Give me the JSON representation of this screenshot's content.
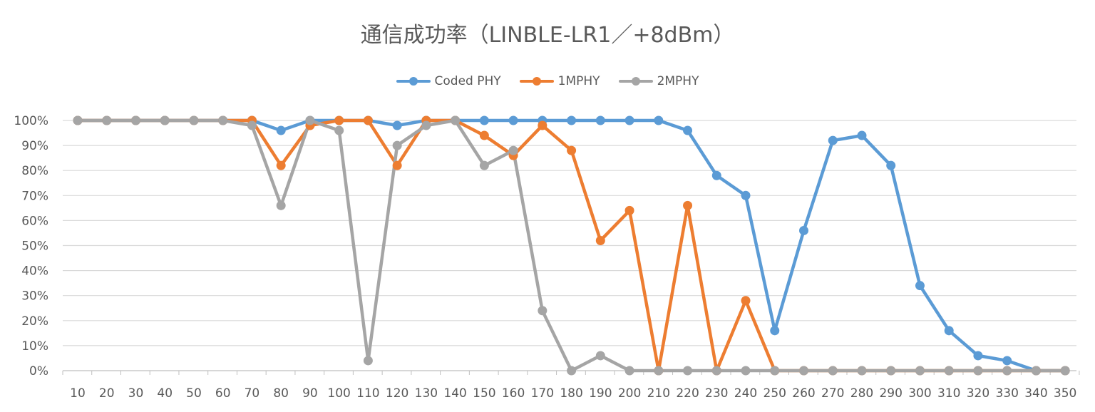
{
  "chart_data": {
    "type": "line",
    "title": "通信成功率（LINBLE-LR1／+8dBm）",
    "xlabel": "",
    "ylabel": "",
    "categories": [
      "10",
      "20",
      "30",
      "40",
      "50",
      "60",
      "70",
      "80",
      "90",
      "100",
      "110",
      "120",
      "130",
      "140",
      "150",
      "160",
      "170",
      "180",
      "190",
      "200",
      "210",
      "220",
      "230",
      "240",
      "250",
      "260",
      "270",
      "280",
      "290",
      "300",
      "310",
      "320",
      "330",
      "340",
      "350"
    ],
    "yticks": [
      "0%",
      "10%",
      "20%",
      "30%",
      "40%",
      "50%",
      "60%",
      "70%",
      "80%",
      "90%",
      "100%"
    ],
    "ylim": [
      0,
      100
    ],
    "grid": true,
    "legend_position": "top",
    "series": [
      {
        "name": "Coded PHY",
        "color": "#5b9bd5",
        "values": [
          100,
          100,
          100,
          100,
          100,
          100,
          100,
          96,
          100,
          100,
          100,
          98,
          100,
          100,
          100,
          100,
          100,
          100,
          100,
          100,
          100,
          96,
          78,
          70,
          16,
          56,
          92,
          94,
          82,
          34,
          16,
          6,
          4,
          0,
          0
        ]
      },
      {
        "name": "1MPHY",
        "color": "#ed7d31",
        "values": [
          100,
          100,
          100,
          100,
          100,
          100,
          100,
          82,
          98,
          100,
          100,
          82,
          100,
          100,
          94,
          86,
          98,
          88,
          52,
          64,
          0,
          66,
          0,
          28,
          0,
          0,
          0,
          0,
          0,
          0,
          0,
          0,
          0,
          0,
          0
        ]
      },
      {
        "name": "2MPHY",
        "color": "#a5a5a5",
        "values": [
          100,
          100,
          100,
          100,
          100,
          100,
          98,
          66,
          100,
          96,
          4,
          90,
          98,
          100,
          82,
          88,
          24,
          0,
          6,
          0,
          0,
          0,
          0,
          0,
          0,
          0,
          0,
          0,
          0,
          0,
          0,
          0,
          0,
          0,
          0
        ]
      }
    ]
  }
}
